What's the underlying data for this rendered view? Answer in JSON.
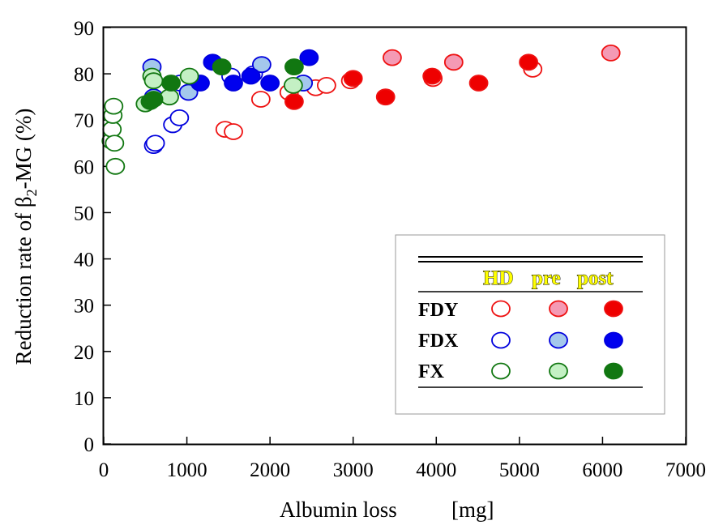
{
  "chart_data": {
    "type": "scatter",
    "xlabel": "Albumin loss",
    "xunit": "[mg]",
    "ylabel_pre": "Reduction rate of β",
    "ylabel_sub": "2",
    "ylabel_post": "-MG (%)",
    "xlim": [
      0,
      7000
    ],
    "ylim": [
      0,
      90
    ],
    "xticks": [
      "0",
      "1000",
      "2000",
      "3000",
      "4000",
      "5000",
      "6000",
      "7000"
    ],
    "yticks": [
      "0",
      "10",
      "20",
      "30",
      "40",
      "50",
      "60",
      "70",
      "80",
      "90"
    ],
    "legend": {
      "placement": "bottom-right",
      "columns": [
        "HD",
        "pre",
        "post"
      ],
      "rows": [
        "FDY",
        "FDX",
        "FX"
      ]
    },
    "colors": {
      "FDY": {
        "stroke": "#ee1111",
        "pre_fill": "#f49ab4",
        "post_fill": "#ee0000"
      },
      "FDX": {
        "stroke": "#0000dd",
        "pre_fill": "#a4c8ec",
        "post_fill": "#0000ee"
      },
      "FX": {
        "stroke": "#117711",
        "pre_fill": "#c4f0c4",
        "post_fill": "#117711"
      }
    },
    "series": [
      {
        "name": "FDY",
        "phase": "HD",
        "points": [
          [
            1460,
            68
          ],
          [
            1560,
            67.5
          ],
          [
            1890,
            74.5
          ],
          [
            2230,
            76
          ],
          [
            2550,
            77
          ],
          [
            2680,
            77.5
          ],
          [
            2970,
            78.5
          ],
          [
            3960,
            79
          ],
          [
            5160,
            81
          ]
        ]
      },
      {
        "name": "FDY",
        "phase": "pre",
        "points": [
          [
            3470,
            83.5
          ],
          [
            4210,
            82.5
          ],
          [
            6100,
            84.5
          ]
        ]
      },
      {
        "name": "FDY",
        "phase": "post",
        "points": [
          [
            2290,
            74
          ],
          [
            3000,
            79
          ],
          [
            3390,
            75
          ],
          [
            3950,
            79.5
          ],
          [
            4510,
            78
          ],
          [
            5110,
            82.5
          ]
        ]
      },
      {
        "name": "FDX",
        "phase": "HD",
        "points": [
          [
            600,
            64.5
          ],
          [
            620,
            65
          ],
          [
            830,
            69
          ],
          [
            910,
            70.5
          ],
          [
            920,
            78
          ],
          [
            1530,
            79.5
          ],
          [
            1800,
            80
          ]
        ]
      },
      {
        "name": "FDX",
        "phase": "pre",
        "points": [
          [
            580,
            81.5
          ],
          [
            600,
            75
          ],
          [
            1020,
            76
          ],
          [
            1900,
            82
          ],
          [
            2400,
            78
          ]
        ]
      },
      {
        "name": "FDX",
        "phase": "post",
        "points": [
          [
            1160,
            78
          ],
          [
            1310,
            82.5
          ],
          [
            1560,
            78
          ],
          [
            1770,
            79.5
          ],
          [
            2000,
            78
          ],
          [
            2470,
            83.5
          ]
        ]
      },
      {
        "name": "FX",
        "phase": "HD",
        "points": [
          [
            90,
            65.5
          ],
          [
            100,
            68
          ],
          [
            110,
            71
          ],
          [
            120,
            73
          ],
          [
            130,
            65
          ],
          [
            140,
            60
          ]
        ]
      },
      {
        "name": "FX",
        "phase": "pre",
        "points": [
          [
            500,
            73.5
          ],
          [
            580,
            79.5
          ],
          [
            600,
            78.5
          ],
          [
            790,
            75
          ],
          [
            1030,
            79.5
          ],
          [
            2280,
            77.5
          ]
        ]
      },
      {
        "name": "FX",
        "phase": "post",
        "points": [
          [
            560,
            74
          ],
          [
            600,
            74.5
          ],
          [
            810,
            78
          ],
          [
            1420,
            81.5
          ],
          [
            2290,
            81.5
          ]
        ]
      }
    ]
  }
}
